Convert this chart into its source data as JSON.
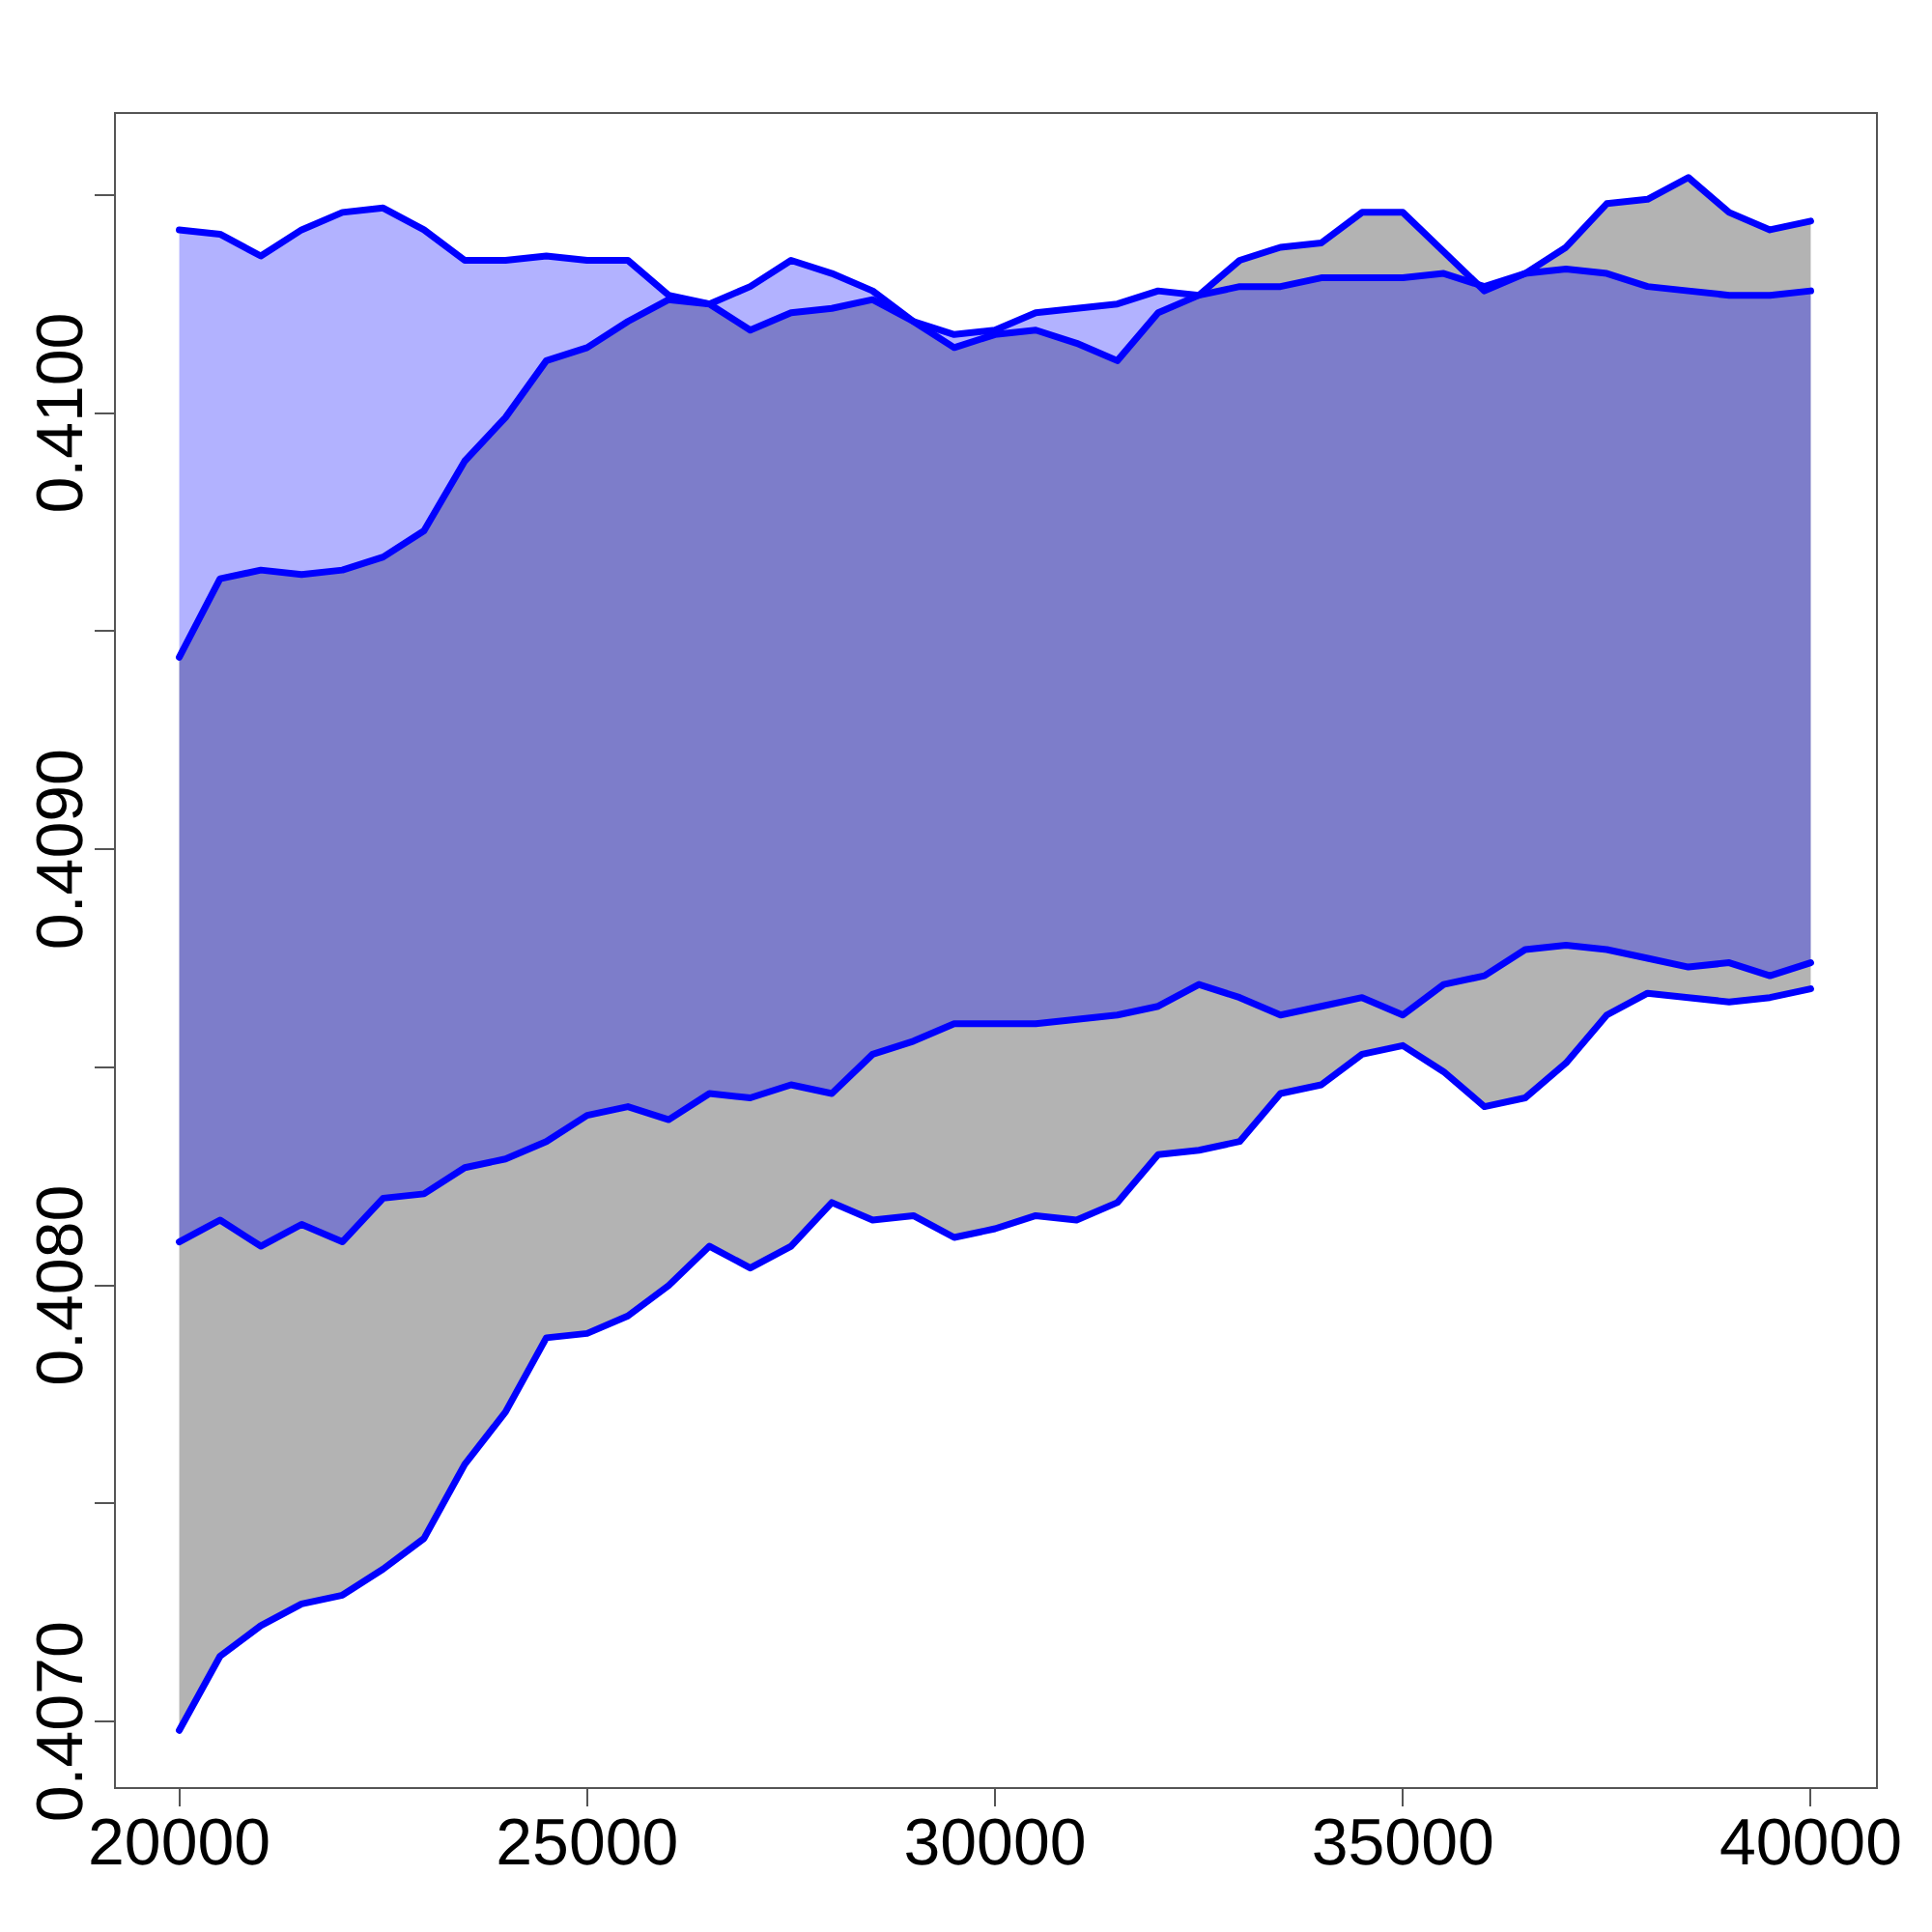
{
  "chart_data": {
    "type": "line",
    "x": [
      20000,
      20500,
      21000,
      21500,
      22000,
      22500,
      23000,
      23500,
      24000,
      24500,
      25000,
      25500,
      26000,
      26500,
      27000,
      27500,
      28000,
      28500,
      29000,
      29500,
      30000,
      30500,
      31000,
      31500,
      32000,
      32500,
      33000,
      33500,
      34000,
      34500,
      35000,
      35500,
      36000,
      36500,
      37000,
      37500,
      38000,
      38500,
      39000,
      39500,
      40000
    ],
    "xlim": [
      19200,
      40800
    ],
    "xticks": [
      20000,
      25000,
      30000,
      35000,
      40000
    ],
    "ylim": [
      0.40685,
      0.41069
    ],
    "yticks": [
      {
        "value": 0.407,
        "label": "0.4070"
      },
      {
        "value": 0.4075,
        "label": null
      },
      {
        "value": 0.408,
        "label": "0.4080"
      },
      {
        "value": 0.4085,
        "label": null
      },
      {
        "value": 0.409,
        "label": "0.4090"
      },
      {
        "value": 0.4095,
        "label": null
      },
      {
        "value": 0.41,
        "label": "0.4100"
      },
      {
        "value": 0.4105,
        "label": null
      }
    ],
    "grid": false,
    "legend": false,
    "series": [
      {
        "color": "#0000ff",
        "values": [
          0.40698,
          0.40715,
          0.40722,
          0.40727,
          0.40729,
          0.40735,
          0.40742,
          0.40759,
          0.40771,
          0.40788,
          0.40789,
          0.40793,
          0.408,
          0.40809,
          0.40804,
          0.40809,
          0.40819,
          0.40815,
          0.40816,
          0.40811,
          0.40813,
          0.40816,
          0.40815,
          0.40819,
          0.4083,
          0.40831,
          0.40833,
          0.40844,
          0.40846,
          0.40853,
          0.40855,
          0.40849,
          0.40841,
          0.40843,
          0.40851,
          0.40862,
          0.40867,
          0.40866,
          0.40865,
          0.40866,
          0.40868
        ]
      },
      {
        "type": "area",
        "color": "#b3b3b3",
        "values": [
          0.40944,
          0.40962,
          0.40964,
          0.40963,
          0.40964,
          0.40967,
          0.40973,
          0.40989,
          0.40999,
          0.41012,
          0.41015,
          0.41021,
          0.41026,
          0.41025,
          0.41019,
          0.41023,
          0.41024,
          0.41026,
          0.41021,
          0.41015,
          0.41018,
          0.41019,
          0.41016,
          0.41012,
          0.41023,
          0.41027,
          0.41035,
          0.41038,
          0.41039,
          0.41046,
          0.41046,
          0.41037,
          0.41028,
          0.41032,
          0.41038,
          0.41048,
          0.41049,
          0.41054,
          0.41046,
          0.41042,
          0.41044
        ]
      },
      {
        "color": "#0000ff",
        "values": [
          0.4081,
          0.40815,
          0.40809,
          0.40814,
          0.4081,
          0.4082,
          0.40821,
          0.40827,
          0.40829,
          0.40833,
          0.40839,
          0.40841,
          0.40838,
          0.40844,
          0.40843,
          0.40846,
          0.40844,
          0.40853,
          0.40856,
          0.4086,
          0.4086,
          0.4086,
          0.40861,
          0.40862,
          0.40864,
          0.40869,
          0.40866,
          0.40862,
          0.40864,
          0.40866,
          0.40862,
          0.40869,
          0.40871,
          0.40877,
          0.40878,
          0.40877,
          0.40875,
          0.40873,
          0.40874,
          0.40871,
          0.40874
        ]
      },
      {
        "type": "area",
        "color": "#0000ff",
        "values": [
          0.41042,
          0.41041,
          0.41036,
          0.41042,
          0.41046,
          0.41047,
          0.41042,
          0.41035,
          0.41035,
          0.41036,
          0.41035,
          0.41035,
          0.41027,
          0.41025,
          0.41029,
          0.41035,
          0.41032,
          0.41028,
          0.41021,
          0.41018,
          0.41019,
          0.41023,
          0.41024,
          0.41025,
          0.41028,
          0.41027,
          0.41029,
          0.41029,
          0.41031,
          0.41031,
          0.41031,
          0.41032,
          0.41029,
          0.41032,
          0.41033,
          0.41032,
          0.41029,
          0.41028,
          0.41027,
          0.41027,
          0.41028
        ]
      }
    ]
  }
}
